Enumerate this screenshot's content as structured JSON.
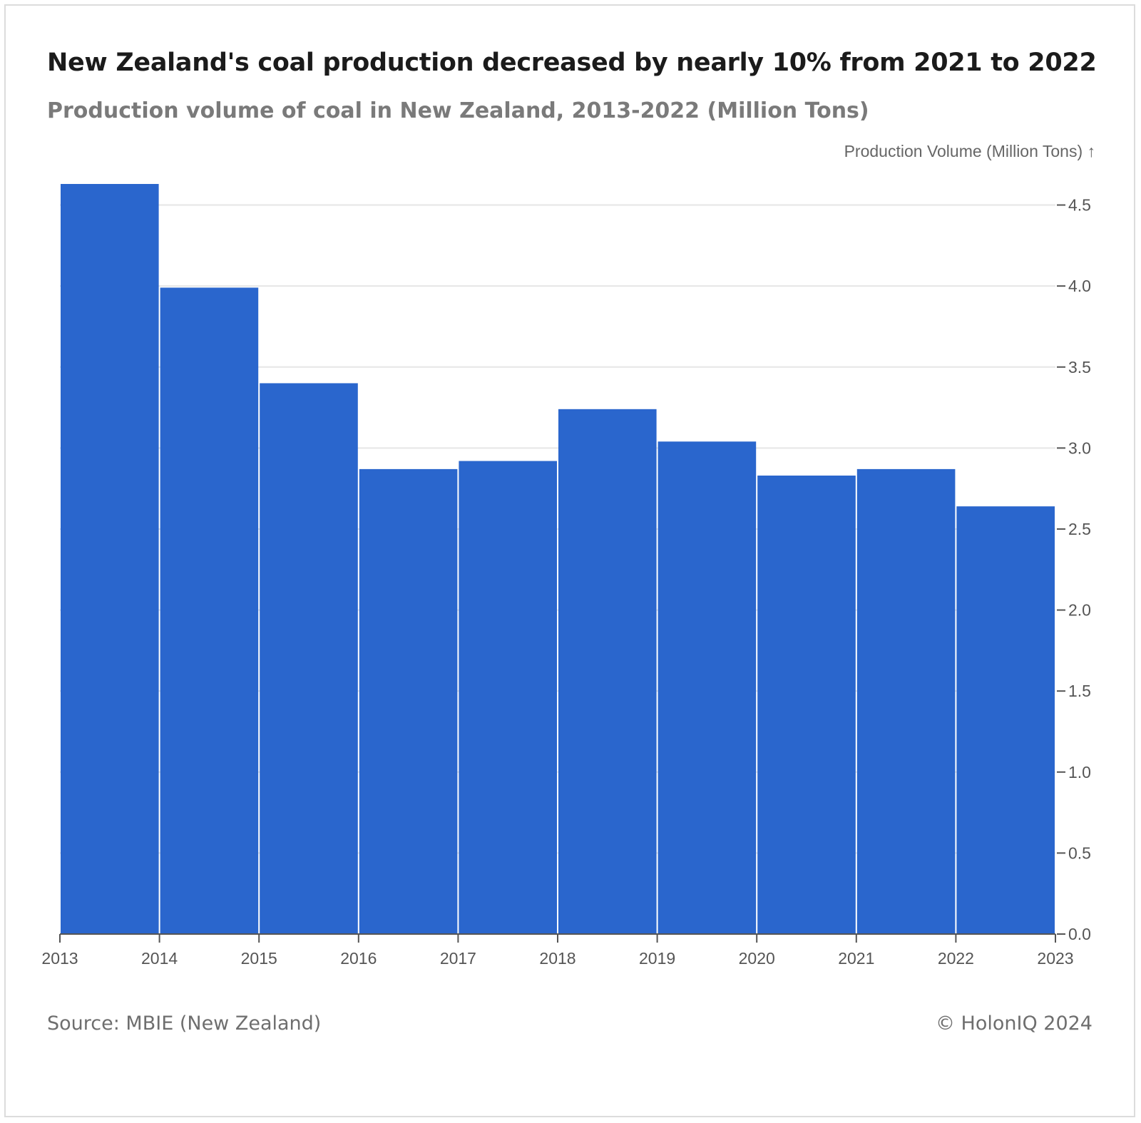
{
  "header": {
    "title": "New Zealand's coal production decreased by nearly 10% from 2021 to 2022",
    "subtitle": "Production volume of coal in New Zealand, 2013-2022 (Million Tons)"
  },
  "footer": {
    "source": "Source: MBIE (New Zealand)",
    "credit": "© HolonIQ 2024"
  },
  "colors": {
    "bar": "#2a66cd",
    "grid": "#e6e6e6",
    "axis": "#555555"
  },
  "chart_data": {
    "type": "bar",
    "title": "New Zealand's coal production decreased by nearly 10% from 2021 to 2022",
    "subtitle": "Production volume of coal in New Zealand, 2013-2022 (Million Tons)",
    "xlabel": "",
    "ylabel": "Production Volume (Million Tons) ↑",
    "bins": [
      {
        "start": 2013,
        "end": 2014,
        "value": 4.63
      },
      {
        "start": 2014,
        "end": 2015,
        "value": 3.99
      },
      {
        "start": 2015,
        "end": 2016,
        "value": 3.4
      },
      {
        "start": 2016,
        "end": 2017,
        "value": 2.87
      },
      {
        "start": 2017,
        "end": 2018,
        "value": 2.92
      },
      {
        "start": 2018,
        "end": 2019,
        "value": 3.24
      },
      {
        "start": 2019,
        "end": 2020,
        "value": 3.04
      },
      {
        "start": 2020,
        "end": 2021,
        "value": 2.83
      },
      {
        "start": 2021,
        "end": 2022,
        "value": 2.87
      },
      {
        "start": 2022,
        "end": 2023,
        "value": 2.64
      }
    ],
    "x_ticks": [
      "2013",
      "2014",
      "2015",
      "2016",
      "2017",
      "2018",
      "2019",
      "2020",
      "2021",
      "2022",
      "2023"
    ],
    "y_ticks": [
      "0.0",
      "0.5",
      "1.0",
      "1.5",
      "2.0",
      "2.5",
      "3.0",
      "3.5",
      "4.0",
      "4.5"
    ],
    "xlim": [
      2013,
      2023
    ],
    "ylim": [
      0,
      4.63
    ],
    "y_axis_side": "right",
    "grid": "horizontal"
  }
}
